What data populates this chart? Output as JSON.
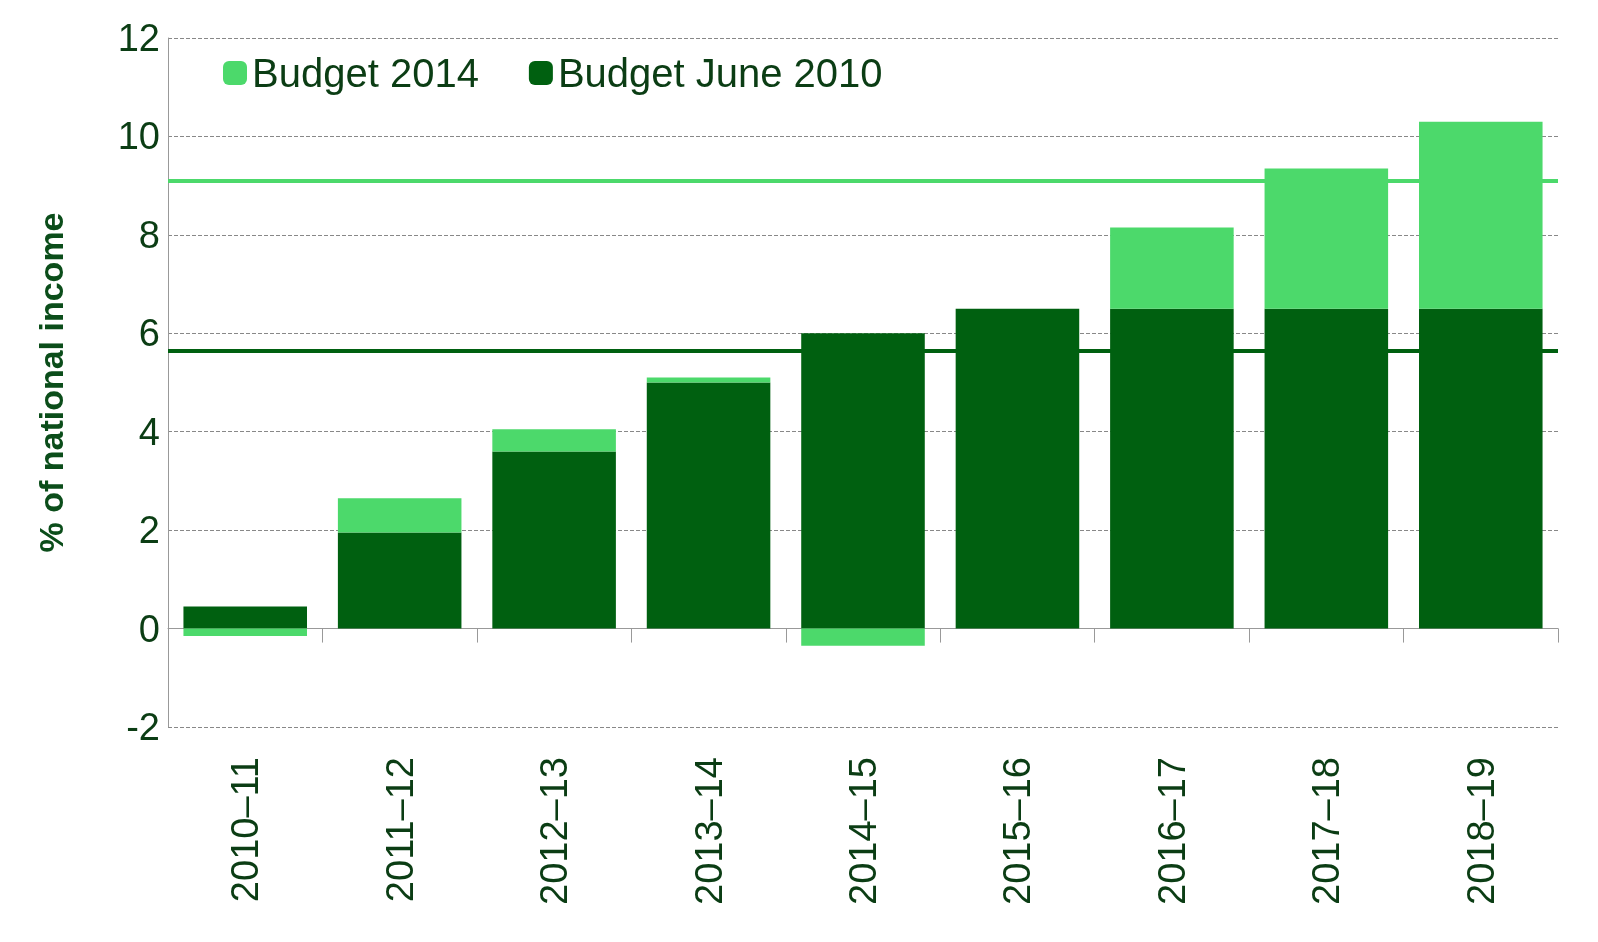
{
  "chart_data": {
    "type": "bar",
    "ylabel": "% of national income",
    "categories": [
      "2010–11",
      "2011–12",
      "2012–13",
      "2013–14",
      "2014–15",
      "2015–16",
      "2016–17",
      "2017–18",
      "2018–19"
    ],
    "stacked": true,
    "series": [
      {
        "name": "Budget June 2010",
        "color": "#006010",
        "values": [
          0.45,
          1.95,
          3.6,
          5.0,
          6.0,
          6.5,
          6.5,
          6.5,
          6.5
        ]
      },
      {
        "name": "Budget 2014",
        "color": "#4cd96b",
        "values": [
          -0.15,
          0.7,
          0.45,
          0.1,
          -0.35,
          0,
          1.65,
          2.85,
          3.8
        ]
      }
    ],
    "ylim": [
      -2,
      12
    ],
    "yticks": [
      -2,
      0,
      2,
      4,
      6,
      8,
      10,
      12
    ],
    "grid": "y",
    "legend": "top left",
    "ref_lines": [
      {
        "axis": "y",
        "value": 9.1,
        "label": null,
        "color": "#4cd96b"
      },
      {
        "axis": "y",
        "value": 5.65,
        "label": null,
        "color": "#006010"
      }
    ]
  }
}
